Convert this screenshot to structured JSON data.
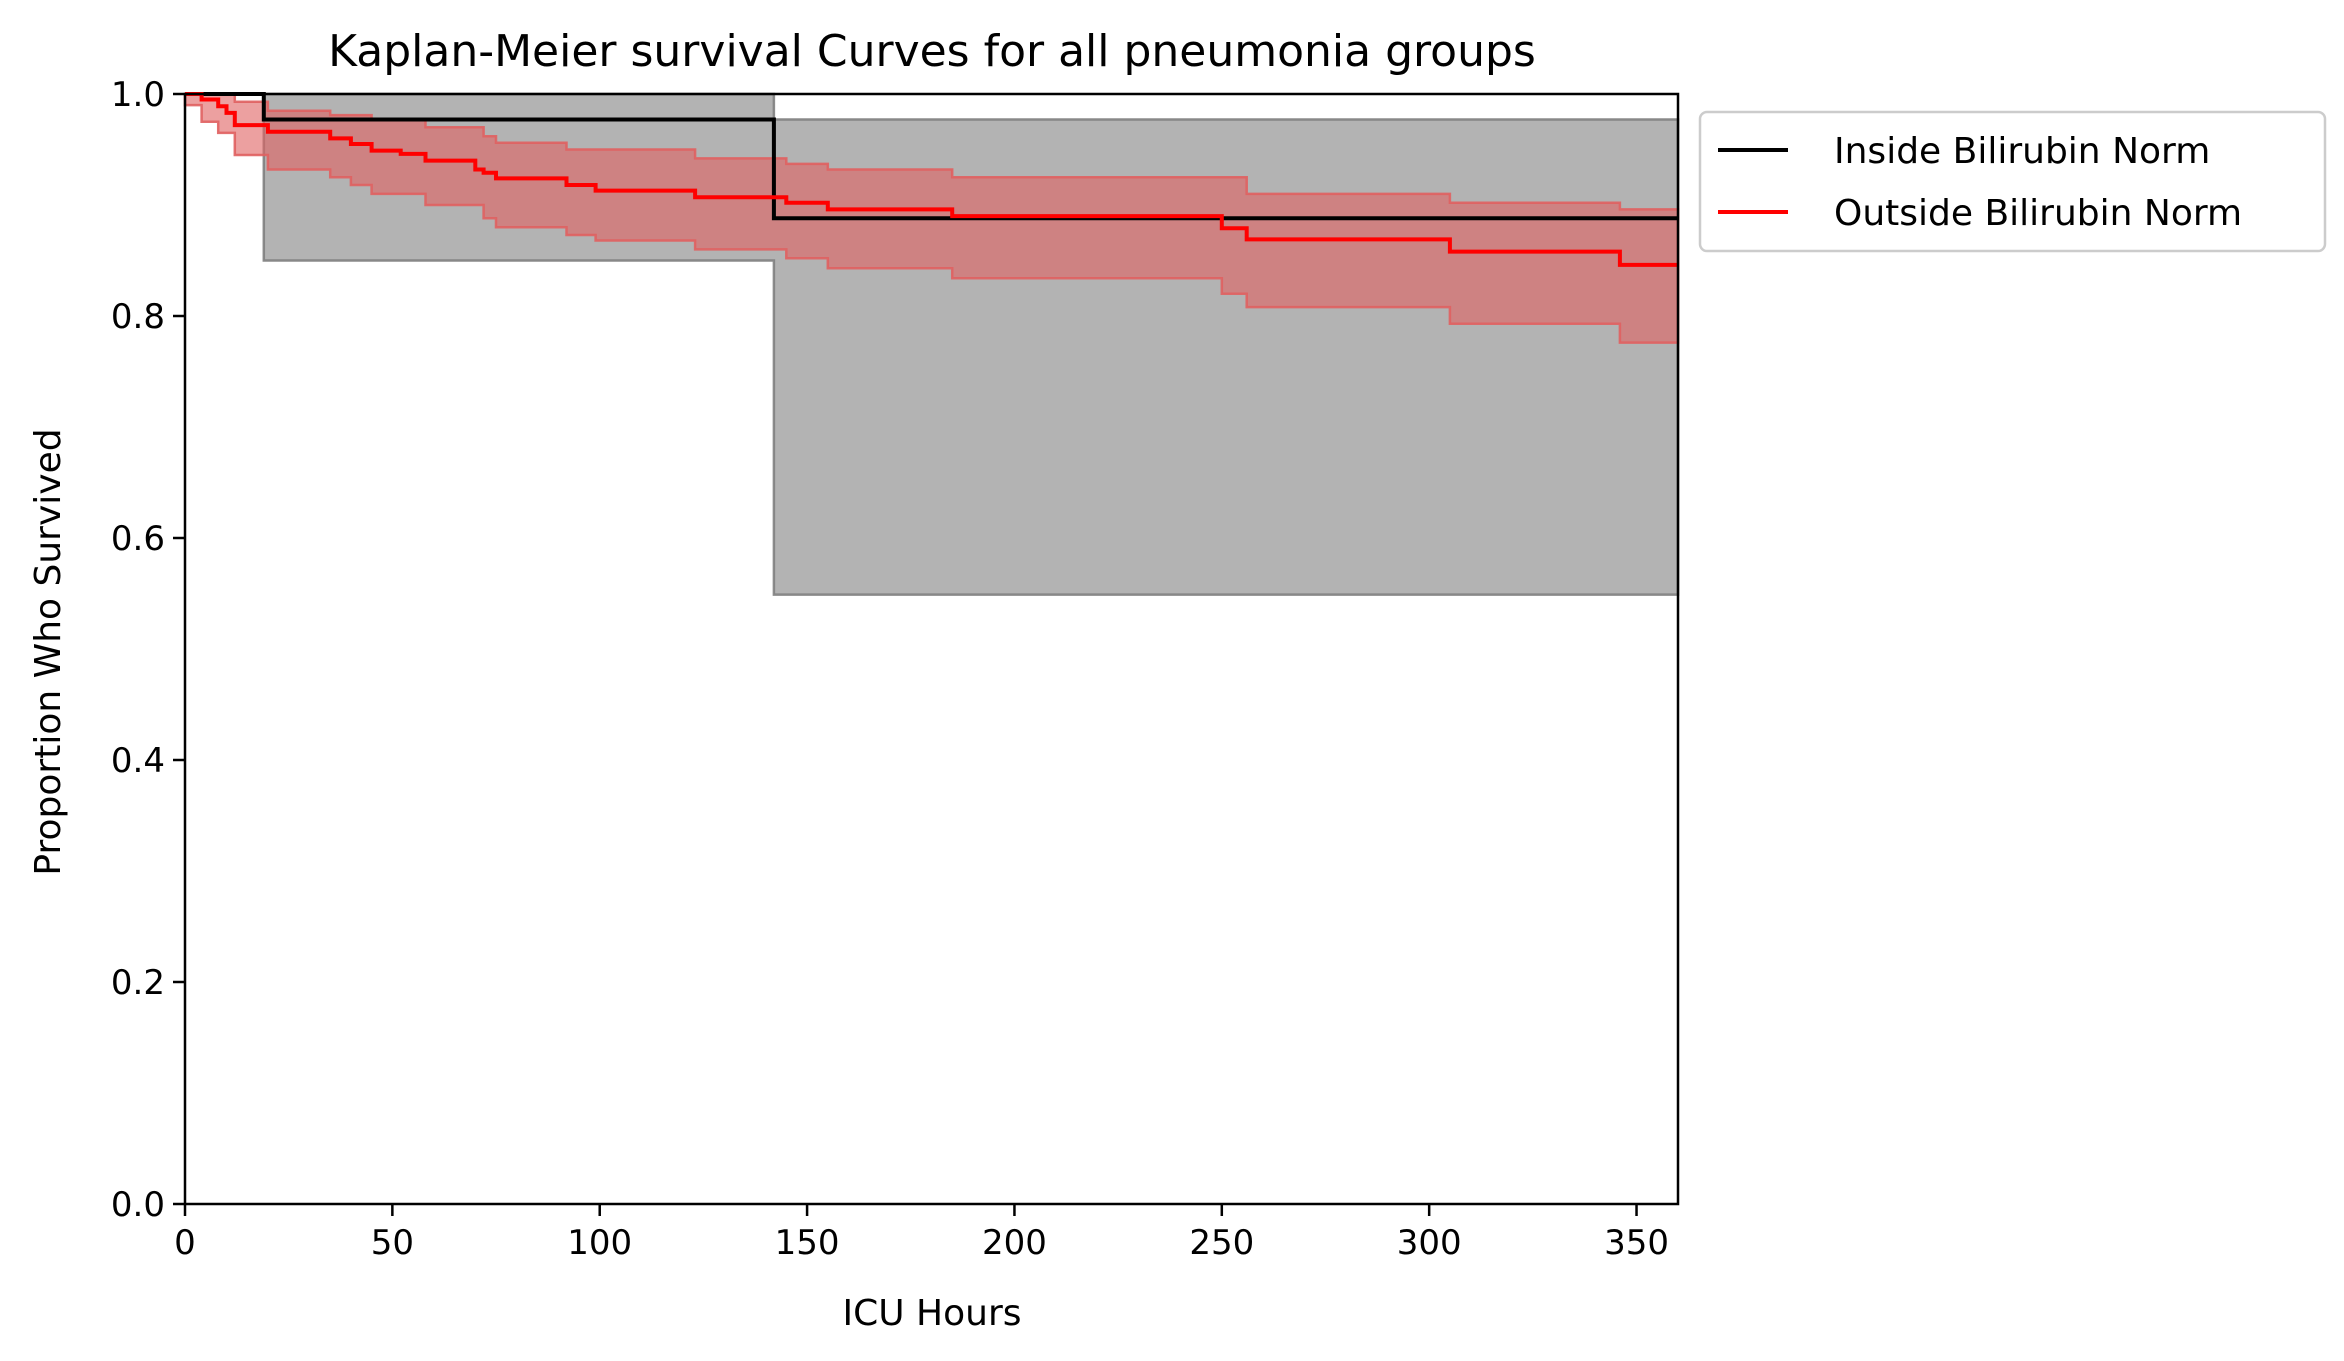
{
  "chart_data": {
    "type": "line",
    "title": "Kaplan-Meier survival Curves for all pneumonia groups",
    "xlabel": "ICU Hours",
    "ylabel": "Proportion Who Survived",
    "xlim": [
      0,
      360
    ],
    "ylim": [
      0,
      1.0
    ],
    "xticks": [
      "0",
      "50",
      "100",
      "150",
      "200",
      "250",
      "300",
      "350"
    ],
    "yticks": [
      "0.0",
      "0.2",
      "0.4",
      "0.6",
      "0.8",
      "1.0"
    ],
    "grid": false,
    "legend_position": "outside-top-right",
    "series": [
      {
        "name": "Inside Bilirubin Norm",
        "color": "#000000",
        "band_color": "#808080",
        "steps": [
          {
            "x": 0,
            "y": 1.0
          },
          {
            "x": 19,
            "y": 0.977
          },
          {
            "x": 142,
            "y": 0.888
          },
          {
            "x": 360,
            "y": 0.888
          }
        ],
        "ci_lower": [
          {
            "x": 0,
            "y": 1.0
          },
          {
            "x": 19,
            "y": 0.85
          },
          {
            "x": 142,
            "y": 0.549
          },
          {
            "x": 360,
            "y": 0.549
          }
        ],
        "ci_upper": [
          {
            "x": 0,
            "y": 1.0
          },
          {
            "x": 19,
            "y": 1.0
          },
          {
            "x": 142,
            "y": 0.977
          },
          {
            "x": 360,
            "y": 0.977
          }
        ]
      },
      {
        "name": "Outside Bilirubin Norm",
        "color": "#ff0000",
        "band_color": "#e06060",
        "steps": [
          {
            "x": 0,
            "y": 1.0
          },
          {
            "x": 4,
            "y": 0.995
          },
          {
            "x": 8,
            "y": 0.989
          },
          {
            "x": 10,
            "y": 0.983
          },
          {
            "x": 12,
            "y": 0.972
          },
          {
            "x": 20,
            "y": 0.966
          },
          {
            "x": 35,
            "y": 0.96
          },
          {
            "x": 40,
            "y": 0.955
          },
          {
            "x": 45,
            "y": 0.949
          },
          {
            "x": 52,
            "y": 0.946
          },
          {
            "x": 58,
            "y": 0.94
          },
          {
            "x": 70,
            "y": 0.932
          },
          {
            "x": 72,
            "y": 0.929
          },
          {
            "x": 75,
            "y": 0.924
          },
          {
            "x": 92,
            "y": 0.918
          },
          {
            "x": 99,
            "y": 0.913
          },
          {
            "x": 123,
            "y": 0.907
          },
          {
            "x": 145,
            "y": 0.902
          },
          {
            "x": 155,
            "y": 0.896
          },
          {
            "x": 185,
            "y": 0.89
          },
          {
            "x": 250,
            "y": 0.879
          },
          {
            "x": 256,
            "y": 0.869
          },
          {
            "x": 305,
            "y": 0.858
          },
          {
            "x": 346,
            "y": 0.846
          },
          {
            "x": 360,
            "y": 0.846
          }
        ],
        "ci_lower": [
          {
            "x": 0,
            "y": 0.99
          },
          {
            "x": 4,
            "y": 0.975
          },
          {
            "x": 8,
            "y": 0.965
          },
          {
            "x": 12,
            "y": 0.945
          },
          {
            "x": 20,
            "y": 0.932
          },
          {
            "x": 35,
            "y": 0.925
          },
          {
            "x": 40,
            "y": 0.918
          },
          {
            "x": 45,
            "y": 0.91
          },
          {
            "x": 58,
            "y": 0.9
          },
          {
            "x": 72,
            "y": 0.888
          },
          {
            "x": 75,
            "y": 0.88
          },
          {
            "x": 92,
            "y": 0.873
          },
          {
            "x": 99,
            "y": 0.868
          },
          {
            "x": 123,
            "y": 0.86
          },
          {
            "x": 145,
            "y": 0.852
          },
          {
            "x": 155,
            "y": 0.843
          },
          {
            "x": 185,
            "y": 0.834
          },
          {
            "x": 250,
            "y": 0.82
          },
          {
            "x": 256,
            "y": 0.808
          },
          {
            "x": 305,
            "y": 0.793
          },
          {
            "x": 346,
            "y": 0.776
          },
          {
            "x": 360,
            "y": 0.776
          }
        ],
        "ci_upper": [
          {
            "x": 0,
            "y": 1.0
          },
          {
            "x": 12,
            "y": 0.993
          },
          {
            "x": 20,
            "y": 0.985
          },
          {
            "x": 35,
            "y": 0.981
          },
          {
            "x": 45,
            "y": 0.977
          },
          {
            "x": 58,
            "y": 0.97
          },
          {
            "x": 72,
            "y": 0.962
          },
          {
            "x": 75,
            "y": 0.956
          },
          {
            "x": 92,
            "y": 0.95
          },
          {
            "x": 123,
            "y": 0.942
          },
          {
            "x": 145,
            "y": 0.937
          },
          {
            "x": 155,
            "y": 0.932
          },
          {
            "x": 185,
            "y": 0.925
          },
          {
            "x": 256,
            "y": 0.91
          },
          {
            "x": 305,
            "y": 0.902
          },
          {
            "x": 346,
            "y": 0.896
          },
          {
            "x": 360,
            "y": 0.896
          }
        ]
      }
    ]
  }
}
